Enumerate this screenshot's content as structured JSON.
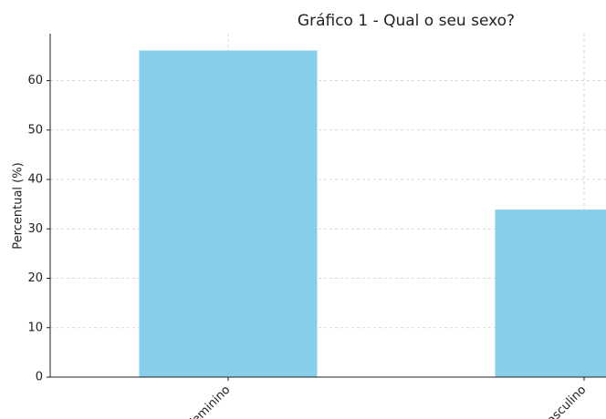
{
  "chart_data": {
    "type": "bar",
    "title": "Gráfico 1 - Qual o seu sexo?",
    "ylabel": "Percentual (%)",
    "categories": [
      "Feminino",
      "Masculino"
    ],
    "values": [
      66.1,
      33.9
    ],
    "color": "#87ceeb",
    "ylim": [
      0,
      69.5
    ],
    "yticks": [
      0,
      10,
      20,
      30,
      40,
      50,
      60
    ],
    "grid": true
  }
}
